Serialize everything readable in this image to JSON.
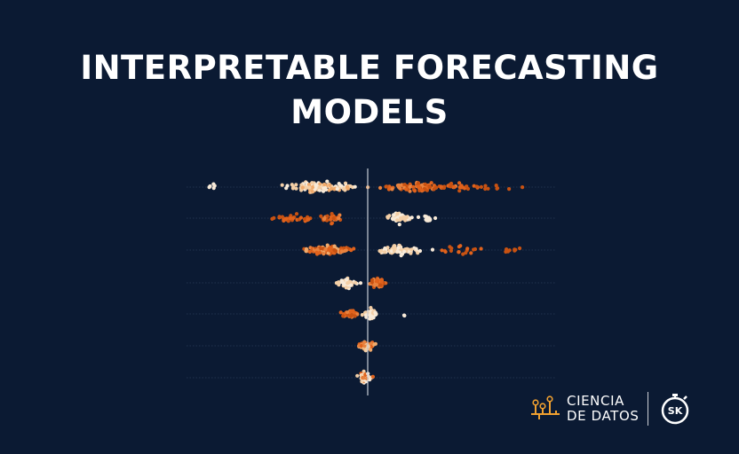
{
  "title": {
    "line1": "INTERPRETABLE FORECASTING",
    "line2": "MODELS"
  },
  "brand": {
    "line1": "CIENCIA",
    "line2": "DE DATOS",
    "badge_text": "SK",
    "icon": "ciencia-de-datos-logo-icon",
    "badge_icon": "stopwatch-sk-icon"
  },
  "colors": {
    "background": "#0b1a33",
    "accent_orange": "#e8621a",
    "light": "#f6e4cf"
  }
}
